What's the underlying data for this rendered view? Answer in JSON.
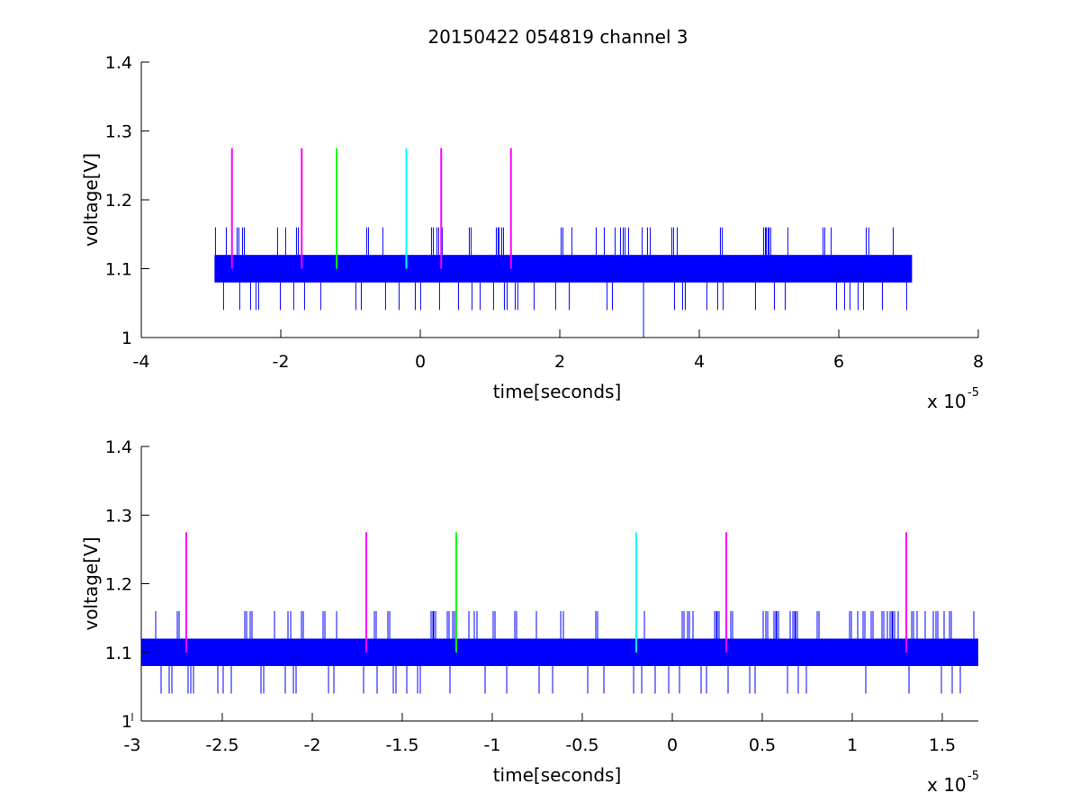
{
  "figure": {
    "title": "20150422 054819 channel 3"
  },
  "chart_data": [
    {
      "type": "line",
      "xlabel": "time[seconds]",
      "ylabel": "voltage[V]",
      "x_multiplier": "x 10",
      "x_exponent": "-5",
      "xlim": [
        -4,
        8
      ],
      "ylim": [
        1,
        1.4
      ],
      "xticks": [
        -4,
        -2,
        0,
        2,
        4,
        6,
        8
      ],
      "xtick_labels": [
        "-4",
        "-2",
        "0",
        "2",
        "4",
        "6",
        "8"
      ],
      "yticks": [
        1,
        1.1,
        1.2,
        1.3,
        1.4
      ],
      "ytick_labels": [
        "1",
        "1.1",
        "1.2",
        "1.3",
        "1.4"
      ],
      "grid": false,
      "signal": {
        "color": "#0000ff",
        "x_range": [
          -2.95,
          7.05
        ],
        "band": [
          1.08,
          1.12
        ],
        "spike_high": 1.16,
        "spike_low": 1.04,
        "dropout": {
          "x": 3.2,
          "y": 1.0
        }
      },
      "markers": [
        {
          "x": -2.7,
          "y": [
            1.1,
            1.275
          ],
          "color": "#ff00ff"
        },
        {
          "x": -1.7,
          "y": [
            1.1,
            1.275
          ],
          "color": "#ff00ff"
        },
        {
          "x": -1.2,
          "y": [
            1.1,
            1.275
          ],
          "color": "#00ff00"
        },
        {
          "x": -0.2,
          "y": [
            1.1,
            1.275
          ],
          "color": "#00ffff"
        },
        {
          "x": 0.3,
          "y": [
            1.1,
            1.275
          ],
          "color": "#ff00ff"
        },
        {
          "x": 1.3,
          "y": [
            1.1,
            1.275
          ],
          "color": "#ff00ff"
        }
      ]
    },
    {
      "type": "line",
      "xlabel": "time[seconds]",
      "ylabel": "voltage[V]",
      "x_multiplier": "x 10",
      "x_exponent": "-5",
      "xlim": [
        -2.95,
        1.7
      ],
      "ylim": [
        1,
        1.4
      ],
      "xticks": [
        -3,
        -2.5,
        -2,
        -1.5,
        -1,
        -0.5,
        0,
        0.5,
        1,
        1.5
      ],
      "xtick_labels": [
        "-3",
        "-2.5",
        "-2",
        "-1.5",
        "-1",
        "-0.5",
        "0",
        "0.5",
        "1",
        "1.5"
      ],
      "yticks": [
        1,
        1.1,
        1.2,
        1.3,
        1.4
      ],
      "ytick_labels": [
        "1",
        "1.1",
        "1.2",
        "1.3",
        "1.4"
      ],
      "grid": false,
      "signal": {
        "color": "#0000ff",
        "x_range": [
          -2.95,
          1.7
        ],
        "band": [
          1.08,
          1.12
        ],
        "spike_high": 1.16,
        "spike_low": 1.04
      },
      "markers": [
        {
          "x": -2.7,
          "y": [
            1.1,
            1.275
          ],
          "color": "#ff00ff"
        },
        {
          "x": -1.7,
          "y": [
            1.1,
            1.275
          ],
          "color": "#ff00ff"
        },
        {
          "x": -1.2,
          "y": [
            1.1,
            1.275
          ],
          "color": "#00ff00"
        },
        {
          "x": -0.2,
          "y": [
            1.1,
            1.275
          ],
          "color": "#00ffff"
        },
        {
          "x": 0.3,
          "y": [
            1.1,
            1.275
          ],
          "color": "#ff00ff"
        },
        {
          "x": 1.3,
          "y": [
            1.1,
            1.275
          ],
          "color": "#ff00ff"
        }
      ]
    }
  ]
}
